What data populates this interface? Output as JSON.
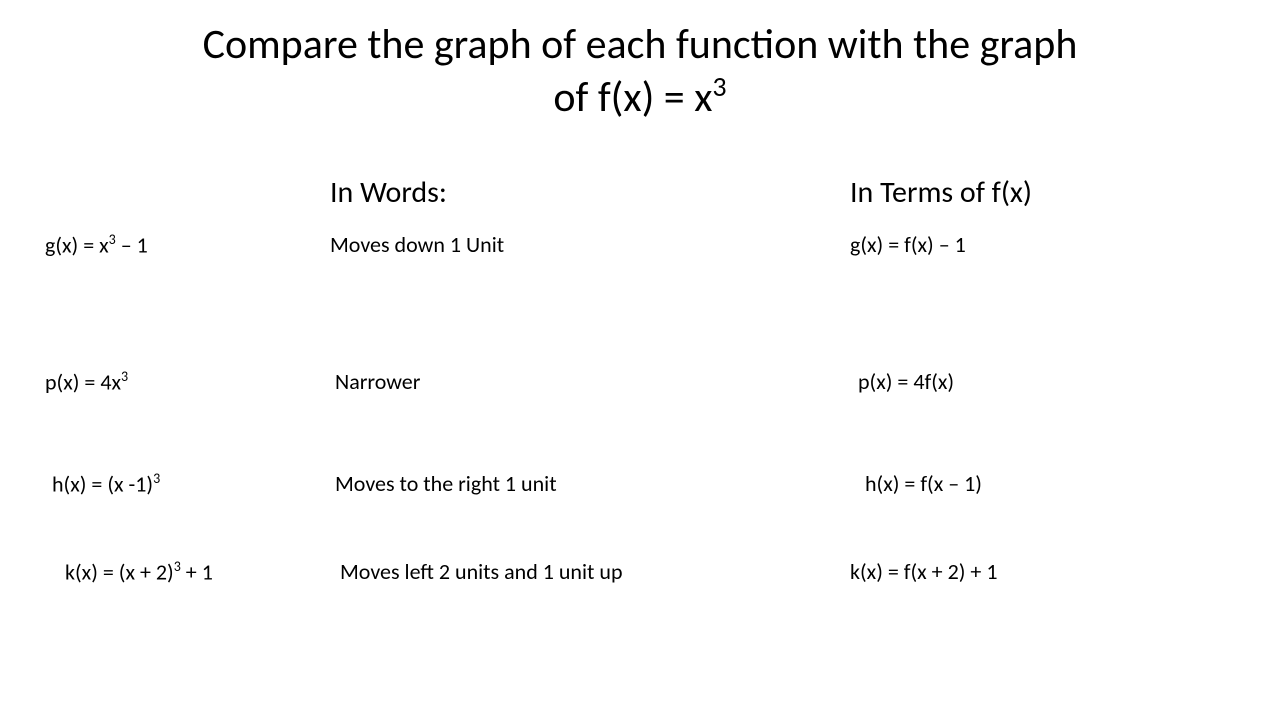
{
  "title": {
    "line1": "Compare the graph of each function with the graph",
    "line2_prefix": "of f(x) = x",
    "line2_sup": "3"
  },
  "headers": {
    "words": "In Words:",
    "terms": "In Terms of f(x)"
  },
  "rows": [
    {
      "func_prefix": "g(x) = x",
      "func_sup": "3",
      "func_suffix": " – 1",
      "words": "Moves down 1 Unit",
      "terms": "g(x) = f(x) – 1"
    },
    {
      "func_prefix": "p(x) = 4x",
      "func_sup": "3",
      "func_suffix": "",
      "words": "Narrower",
      "terms": "p(x) = 4f(x)"
    },
    {
      "func_prefix": "h(x) = (x -1)",
      "func_sup": "3",
      "func_suffix": "",
      "words": "Moves to the right 1 unit",
      "terms": "h(x) = f(x – 1)"
    },
    {
      "func_prefix": "k(x) = (x + 2)",
      "func_sup": "3",
      "func_suffix": " + 1",
      "words": "Moves left 2 units and 1 unit up",
      "terms": "k(x) = f(x + 2) + 1"
    }
  ],
  "styling": {
    "background_color": "#ffffff",
    "text_color": "#000000",
    "title_fontsize": 42,
    "header_fontsize": 30,
    "body_fontsize": 22,
    "font_family": "Calibri"
  }
}
